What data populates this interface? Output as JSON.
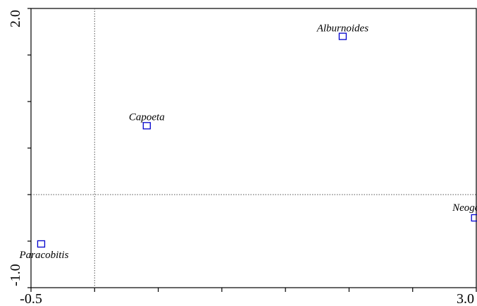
{
  "chart_data": {
    "type": "scatter",
    "title": "",
    "xlabel": "",
    "ylabel": "",
    "xlim": [
      -0.5,
      3.0
    ],
    "ylim": [
      -1.0,
      2.0
    ],
    "x_tick_labels": [
      "-0.5",
      "3.0"
    ],
    "y_tick_labels": [
      "2.0",
      "-1.0"
    ],
    "marker_color": "#0000cc",
    "reference_lines": {
      "x": 0.0,
      "y": 0.0
    },
    "points": [
      {
        "label": "Alburnoides",
        "x": 1.95,
        "y": 1.7
      },
      {
        "label": "Capoeta",
        "x": 0.41,
        "y": 0.74
      },
      {
        "label": "Neogobius",
        "x": 2.99,
        "y": -0.25
      },
      {
        "label": "Paracobitis",
        "x": -0.42,
        "y": -0.53
      }
    ]
  }
}
